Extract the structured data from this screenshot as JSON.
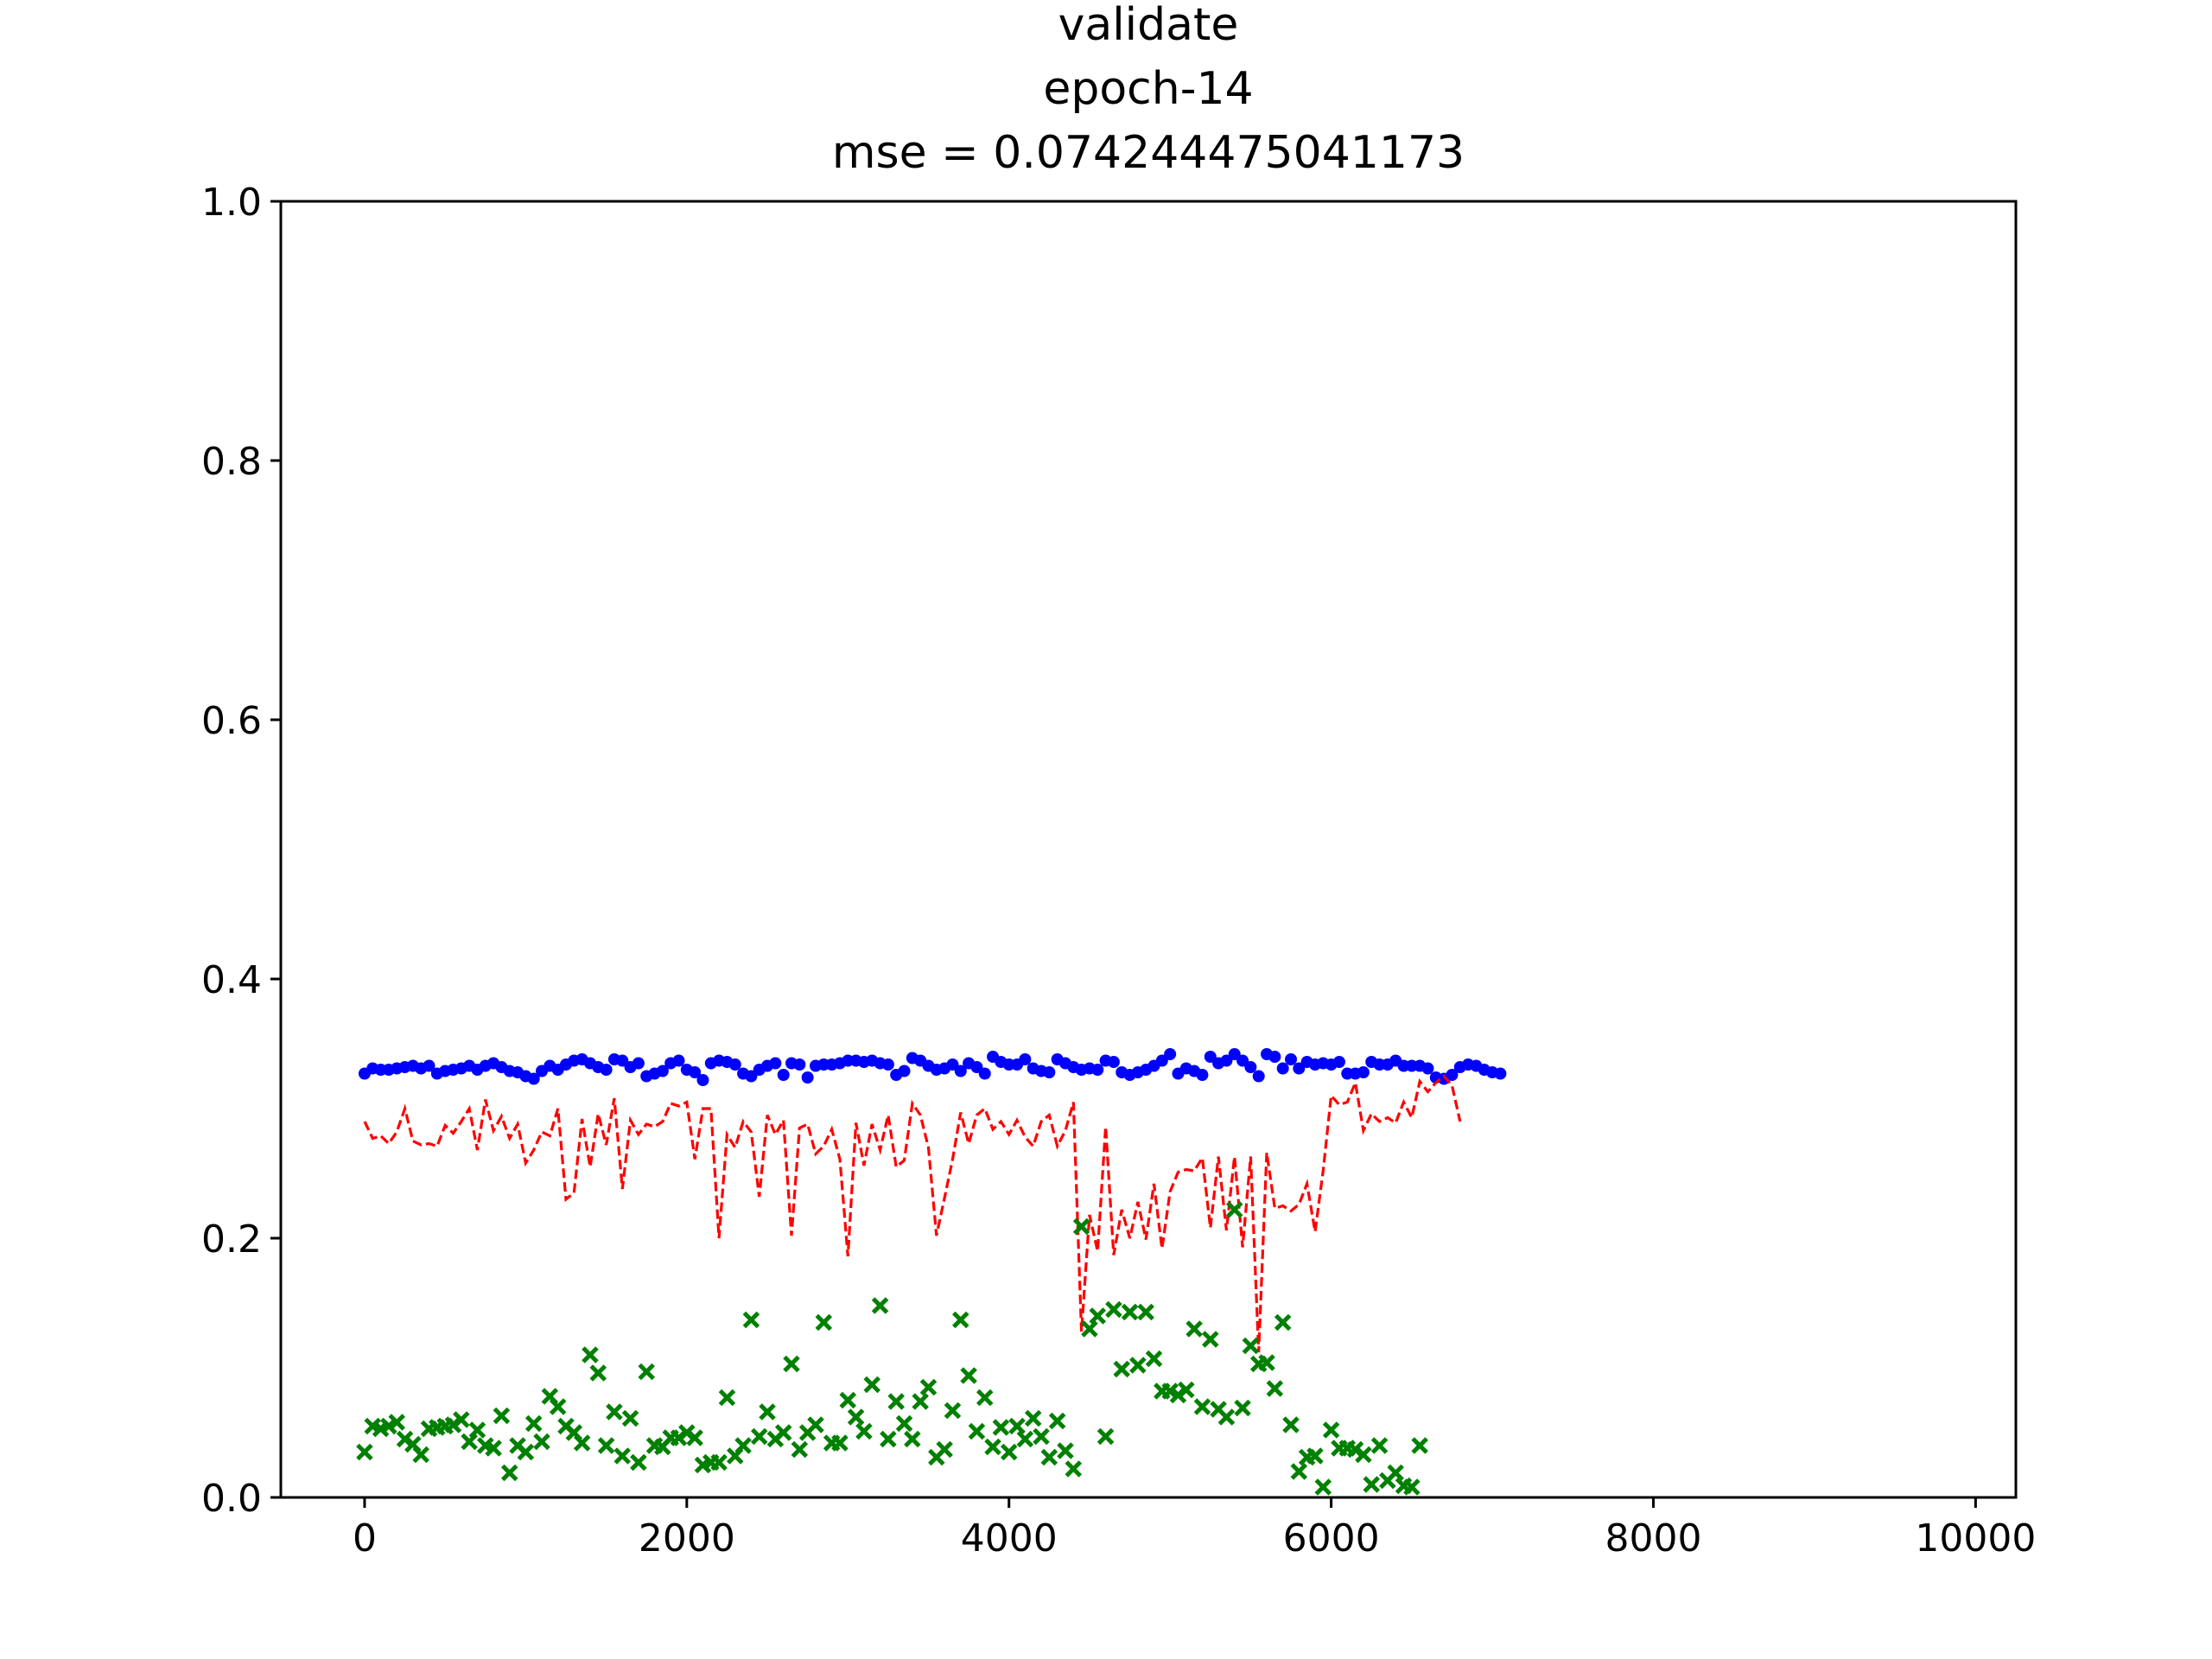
{
  "chart_data": {
    "type": "scatter",
    "title_lines": [
      "validate",
      "epoch-14",
      "mse = 0.074244475041173"
    ],
    "xlabel": "",
    "ylabel": "",
    "xlim": [
      -520,
      10250
    ],
    "ylim": [
      0.0,
      1.0
    ],
    "xticks": [
      0,
      2000,
      4000,
      6000,
      8000,
      10000
    ],
    "yticks": [
      0.0,
      0.2,
      0.4,
      0.6,
      0.8,
      1.0
    ],
    "xtick_labels": [
      "0",
      "2000",
      "4000",
      "6000",
      "8000",
      "10000"
    ],
    "ytick_labels": [
      "0.0",
      "0.2",
      "0.4",
      "0.6",
      "0.8",
      "1.0"
    ],
    "grid": false,
    "legend": "none",
    "series": [
      {
        "marker": "dot",
        "color": "#0000ff",
        "x_start": 0,
        "x_step": 50,
        "values": [
          0.327,
          0.331,
          0.33,
          0.33,
          0.331,
          0.332,
          0.333,
          0.331,
          0.333,
          0.327,
          0.329,
          0.33,
          0.331,
          0.333,
          0.33,
          0.333,
          0.335,
          0.332,
          0.329,
          0.328,
          0.325,
          0.323,
          0.329,
          0.333,
          0.33,
          0.334,
          0.337,
          0.338,
          0.335,
          0.332,
          0.33,
          0.338,
          0.337,
          0.332,
          0.335,
          0.325,
          0.327,
          0.329,
          0.335,
          0.337,
          0.33,
          0.328,
          0.322,
          0.335,
          0.337,
          0.336,
          0.334,
          0.327,
          0.325,
          0.33,
          0.333,
          0.335,
          0.326,
          0.335,
          0.334,
          0.324,
          0.333,
          0.334,
          0.334,
          0.335,
          0.337,
          0.337,
          0.336,
          0.337,
          0.335,
          0.334,
          0.326,
          0.329,
          0.339,
          0.337,
          0.333,
          0.33,
          0.331,
          0.334,
          0.329,
          0.335,
          0.332,
          0.327,
          0.34,
          0.336,
          0.334,
          0.334,
          0.338,
          0.331,
          0.329,
          0.328,
          0.338,
          0.335,
          0.332,
          0.33,
          0.331,
          0.33,
          0.337,
          0.336,
          0.328,
          0.326,
          0.328,
          0.33,
          0.333,
          0.337,
          0.342,
          0.327,
          0.331,
          0.329,
          0.326,
          0.34,
          0.335,
          0.337,
          0.342,
          0.337,
          0.332,
          0.325,
          0.342,
          0.34,
          0.331,
          0.338,
          0.331,
          0.336,
          0.334,
          0.335,
          0.334,
          0.336,
          0.327,
          0.327,
          0.328,
          0.336,
          0.334,
          0.334,
          0.337,
          0.333,
          0.333,
          0.333,
          0.331,
          0.324,
          0.323,
          0.326,
          0.332,
          0.334,
          0.333,
          0.33,
          0.328,
          0.327
        ]
      },
      {
        "marker": "dashed-line",
        "color": "#ff0000",
        "x_start": 0,
        "x_step": 50,
        "values": [
          0.29,
          0.277,
          0.279,
          0.273,
          0.282,
          0.3,
          0.275,
          0.272,
          0.273,
          0.271,
          0.287,
          0.281,
          0.29,
          0.3,
          0.268,
          0.307,
          0.283,
          0.294,
          0.277,
          0.288,
          0.258,
          0.268,
          0.282,
          0.279,
          0.3,
          0.23,
          0.235,
          0.292,
          0.255,
          0.296,
          0.272,
          0.308,
          0.238,
          0.291,
          0.28,
          0.288,
          0.286,
          0.29,
          0.304,
          0.302,
          0.305,
          0.261,
          0.3,
          0.3,
          0.2,
          0.28,
          0.27,
          0.29,
          0.282,
          0.232,
          0.295,
          0.28,
          0.291,
          0.202,
          0.285,
          0.288,
          0.265,
          0.271,
          0.284,
          0.261,
          0.186,
          0.289,
          0.256,
          0.288,
          0.268,
          0.295,
          0.255,
          0.26,
          0.304,
          0.295,
          0.27,
          0.202,
          0.231,
          0.261,
          0.297,
          0.273,
          0.295,
          0.3,
          0.284,
          0.29,
          0.28,
          0.291,
          0.278,
          0.271,
          0.29,
          0.295,
          0.271,
          0.283,
          0.305,
          0.128,
          0.218,
          0.19,
          0.286,
          0.187,
          0.222,
          0.2,
          0.228,
          0.199,
          0.242,
          0.192,
          0.236,
          0.251,
          0.253,
          0.252,
          0.262,
          0.208,
          0.263,
          0.206,
          0.263,
          0.193,
          0.263,
          0.112,
          0.266,
          0.223,
          0.225,
          0.221,
          0.226,
          0.242,
          0.205,
          0.252,
          0.31,
          0.303,
          0.305,
          0.32,
          0.283,
          0.296,
          0.29,
          0.293,
          0.289,
          0.305,
          0.293,
          0.321,
          0.313,
          0.32,
          0.325,
          0.318,
          0.29
        ]
      },
      {
        "marker": "x",
        "color": "#008000",
        "points": [
          [
            0,
            0.035
          ],
          [
            50,
            0.055
          ],
          [
            100,
            0.053
          ],
          [
            150,
            0.055
          ],
          [
            200,
            0.058
          ],
          [
            250,
            0.045
          ],
          [
            300,
            0.041
          ],
          [
            350,
            0.033
          ],
          [
            400,
            0.053
          ],
          [
            450,
            0.054
          ],
          [
            500,
            0.055
          ],
          [
            550,
            0.056
          ],
          [
            600,
            0.06
          ],
          [
            650,
            0.043
          ],
          [
            700,
            0.052
          ],
          [
            750,
            0.04
          ],
          [
            800,
            0.038
          ],
          [
            850,
            0.063
          ],
          [
            900,
            0.019
          ],
          [
            950,
            0.04
          ],
          [
            1000,
            0.035
          ],
          [
            1050,
            0.057
          ],
          [
            1100,
            0.043
          ],
          [
            1150,
            0.078
          ],
          [
            1200,
            0.07
          ],
          [
            1250,
            0.055
          ],
          [
            1300,
            0.05
          ],
          [
            1350,
            0.042
          ],
          [
            1400,
            0.11
          ],
          [
            1450,
            0.096
          ],
          [
            1500,
            0.04
          ],
          [
            1550,
            0.066
          ],
          [
            1600,
            0.032
          ],
          [
            1650,
            0.061
          ],
          [
            1700,
            0.027
          ],
          [
            1750,
            0.097
          ],
          [
            1800,
            0.04
          ],
          [
            1850,
            0.039
          ],
          [
            1900,
            0.046
          ],
          [
            1950,
            0.046
          ],
          [
            2000,
            0.05
          ],
          [
            2050,
            0.046
          ],
          [
            2100,
            0.025
          ],
          [
            2150,
            0.027
          ],
          [
            2200,
            0.027
          ],
          [
            2250,
            0.077
          ],
          [
            2300,
            0.032
          ],
          [
            2350,
            0.04
          ],
          [
            2400,
            0.137
          ],
          [
            2450,
            0.047
          ],
          [
            2500,
            0.066
          ],
          [
            2550,
            0.045
          ],
          [
            2600,
            0.05
          ],
          [
            2650,
            0.103
          ],
          [
            2700,
            0.037
          ],
          [
            2750,
            0.05
          ],
          [
            2800,
            0.056
          ],
          [
            2850,
            0.135
          ],
          [
            2900,
            0.042
          ],
          [
            2950,
            0.042
          ],
          [
            3000,
            0.075
          ],
          [
            3050,
            0.062
          ],
          [
            3100,
            0.051
          ],
          [
            3150,
            0.087
          ],
          [
            3200,
            0.148
          ],
          [
            3250,
            0.045
          ],
          [
            3300,
            0.074
          ],
          [
            3350,
            0.057
          ],
          [
            3400,
            0.045
          ],
          [
            3450,
            0.074
          ],
          [
            3500,
            0.085
          ],
          [
            3550,
            0.031
          ],
          [
            3600,
            0.037
          ],
          [
            3650,
            0.067
          ],
          [
            3700,
            0.137
          ],
          [
            3750,
            0.094
          ],
          [
            3800,
            0.051
          ],
          [
            3850,
            0.077
          ],
          [
            3900,
            0.039
          ],
          [
            3950,
            0.054
          ],
          [
            4000,
            0.035
          ],
          [
            4050,
            0.055
          ],
          [
            4100,
            0.045
          ],
          [
            4150,
            0.061
          ],
          [
            4200,
            0.047
          ],
          [
            4250,
            0.031
          ],
          [
            4300,
            0.059
          ],
          [
            4350,
            0.036
          ],
          [
            4400,
            0.022
          ],
          [
            4450,
            0.209
          ],
          [
            4500,
            0.13
          ],
          [
            4550,
            0.14
          ],
          [
            4600,
            0.047
          ],
          [
            4650,
            0.145
          ],
          [
            4700,
            0.099
          ],
          [
            4750,
            0.143
          ],
          [
            4800,
            0.102
          ],
          [
            4850,
            0.143
          ],
          [
            4900,
            0.107
          ],
          [
            4950,
            0.082
          ],
          [
            5000,
            0.082
          ],
          [
            5050,
            0.079
          ],
          [
            5100,
            0.083
          ],
          [
            5150,
            0.13
          ],
          [
            5200,
            0.07
          ],
          [
            5250,
            0.122
          ],
          [
            5300,
            0.068
          ],
          [
            5350,
            0.062
          ],
          [
            5400,
            0.222
          ],
          [
            5450,
            0.069
          ],
          [
            5500,
            0.117
          ],
          [
            5550,
            0.103
          ],
          [
            5600,
            0.104
          ],
          [
            5650,
            0.084
          ],
          [
            5700,
            0.135
          ],
          [
            5750,
            0.056
          ],
          [
            5800,
            0.02
          ],
          [
            5850,
            0.031
          ],
          [
            5900,
            0.032
          ],
          [
            5950,
            0.008
          ],
          [
            6000,
            0.052
          ],
          [
            6050,
            0.038
          ],
          [
            6100,
            0.038
          ],
          [
            6150,
            0.037
          ],
          [
            6200,
            0.033
          ],
          [
            6250,
            0.01
          ],
          [
            6300,
            0.04
          ],
          [
            6350,
            0.013
          ],
          [
            6400,
            0.019
          ],
          [
            6450,
            0.009
          ],
          [
            6500,
            0.008
          ],
          [
            6550,
            0.04
          ]
        ]
      }
    ]
  }
}
